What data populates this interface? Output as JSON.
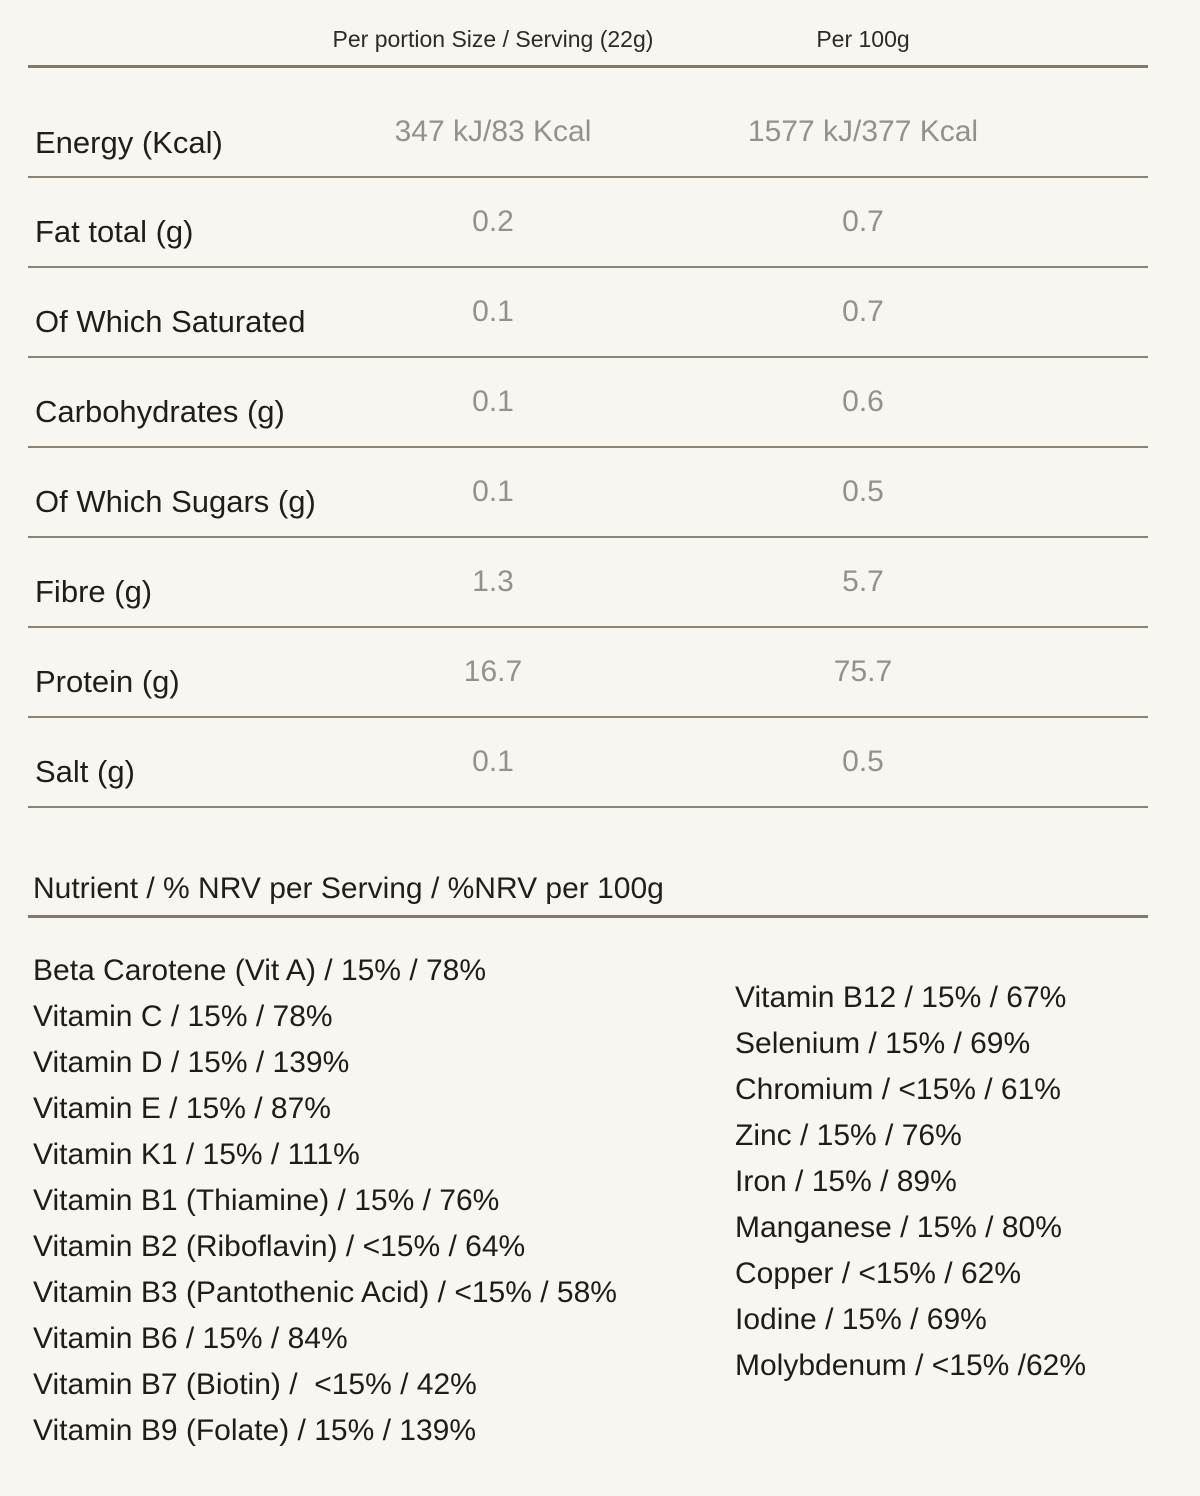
{
  "table": {
    "headers": {
      "col1": "Per portion Size / Serving (22g)",
      "col2": "Per 100g"
    },
    "rows": [
      {
        "label": "Energy (Kcal)",
        "per_serving": "347 kJ/83 Kcal",
        "per_100g": "1577 kJ/377 Kcal"
      },
      {
        "label": "Fat total (g)",
        "per_serving": "0.2",
        "per_100g": "0.7"
      },
      {
        "label": "Of Which Saturated",
        "per_serving": "0.1",
        "per_100g": "0.7"
      },
      {
        "label": "Carbohydrates (g)",
        "per_serving": "0.1",
        "per_100g": "0.6"
      },
      {
        "label": "Of Which Sugars (g)",
        "per_serving": "0.1",
        "per_100g": "0.5"
      },
      {
        "label": "Fibre (g)",
        "per_serving": "1.3",
        "per_100g": "5.7"
      },
      {
        "label": "Protein (g)",
        "per_serving": "16.7",
        "per_100g": "75.7"
      },
      {
        "label": "Salt (g)",
        "per_serving": "0.1",
        "per_100g": "0.5"
      }
    ]
  },
  "nrv": {
    "section_header": "Nutrient / % NRV per Serving / %NRV per 100g",
    "left_column": [
      "Beta Carotene (Vit A) / 15% / 78%",
      "Vitamin C / 15% / 78%",
      "Vitamin D / 15% / 139%",
      "Vitamin E / 15% / 87%",
      "Vitamin K1 / 15% / 111%",
      "Vitamin B1 (Thiamine) / 15% / 76%",
      "Vitamin B2 (Riboflavin) / <15% / 64%",
      "Vitamin B3 (Pantothenic Acid) / <15% / 58%",
      "Vitamin B6 / 15% / 84%",
      "Vitamin B7 (Biotin) /  <15% / 42%",
      "Vitamin B9 (Folate) / 15% / 139%"
    ],
    "right_column": [
      "Vitamin B12 / 15% / 67%",
      "Selenium / 15% / 69%",
      "Chromium / <15% / 61%",
      "Zinc / 15% / 76%",
      "Iron / 15% / 89%",
      "Manganese / 15% / 80%",
      "Copper / <15% / 62%",
      "Iodine / 15% / 69%",
      "Molybdenum / <15% /62%"
    ]
  },
  "colors": {
    "background": "#f8f6f1",
    "rule_thick": "#85786a",
    "rule_thin": "#8f8478",
    "label_text": "#201e1a",
    "value_text": "#94918b",
    "header_text": "#2d2b27"
  }
}
